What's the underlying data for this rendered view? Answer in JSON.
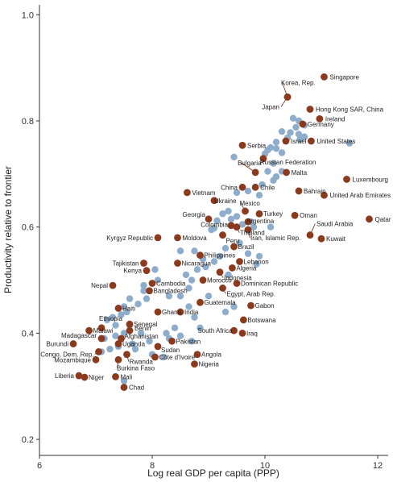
{
  "chart_data": {
    "type": "scatter",
    "title": "",
    "xlabel": "Log real GDP per capita (PPP)",
    "ylabel": "Productivity relative to frontier",
    "xlim": [
      6.0,
      12.2
    ],
    "ylim": [
      0.2,
      1.02
    ],
    "xticks": [
      "6",
      "8",
      "10",
      "12"
    ],
    "yticks": [
      "0.2",
      "0.4",
      "0.6",
      "0.8",
      "1.0"
    ],
    "grid": false,
    "colors": {
      "labeled": "#8b3a1e",
      "unlabeled": "#8eadcc",
      "label_line": "#7a2a12"
    },
    "labeled_points": [
      {
        "name": "Singapore",
        "x": 11.05,
        "y": 0.883
      },
      {
        "name": "Korea, Rep.",
        "x": 10.4,
        "y": 0.845
      },
      {
        "name": "Japan",
        "x": 10.4,
        "y": 0.845
      },
      {
        "name": "Hong Kong SAR, China",
        "x": 10.8,
        "y": 0.822
      },
      {
        "name": "Ireland",
        "x": 10.97,
        "y": 0.804
      },
      {
        "name": "Germany",
        "x": 10.67,
        "y": 0.794
      },
      {
        "name": "Israel",
        "x": 10.37,
        "y": 0.762
      },
      {
        "name": "United States",
        "x": 10.82,
        "y": 0.762
      },
      {
        "name": "Serbia",
        "x": 9.6,
        "y": 0.754
      },
      {
        "name": "Russian Federation",
        "x": 9.97,
        "y": 0.729
      },
      {
        "name": "Bulgaria",
        "x": 9.83,
        "y": 0.703
      },
      {
        "name": "Malta",
        "x": 10.38,
        "y": 0.703
      },
      {
        "name": "Luxembourg",
        "x": 11.45,
        "y": 0.69
      },
      {
        "name": "China",
        "x": 9.6,
        "y": 0.675
      },
      {
        "name": "Chile",
        "x": 9.83,
        "y": 0.675
      },
      {
        "name": "Bahrain",
        "x": 10.6,
        "y": 0.668
      },
      {
        "name": "United Arab Emirates",
        "x": 11.05,
        "y": 0.66
      },
      {
        "name": "Vietnam",
        "x": 8.62,
        "y": 0.665
      },
      {
        "name": "Ukraine",
        "x": 9.1,
        "y": 0.65
      },
      {
        "name": "Mexico",
        "x": 9.65,
        "y": 0.63
      },
      {
        "name": "Turkey",
        "x": 9.9,
        "y": 0.625
      },
      {
        "name": "Oman",
        "x": 10.53,
        "y": 0.622
      },
      {
        "name": "Georgia",
        "x": 9.0,
        "y": 0.615
      },
      {
        "name": "Argentina",
        "x": 9.7,
        "y": 0.61
      },
      {
        "name": "Colombia",
        "x": 9.4,
        "y": 0.603
      },
      {
        "name": "Thailand",
        "x": 9.5,
        "y": 0.6
      },
      {
        "name": "Qatar",
        "x": 11.85,
        "y": 0.615
      },
      {
        "name": "Saudi Arabia",
        "x": 10.8,
        "y": 0.585
      },
      {
        "name": "Iran, Islamic Rep.",
        "x": 9.7,
        "y": 0.595
      },
      {
        "name": "Peru",
        "x": 9.25,
        "y": 0.585
      },
      {
        "name": "Kuwait",
        "x": 11.0,
        "y": 0.578
      },
      {
        "name": "Kyrgyz Republic",
        "x": 8.1,
        "y": 0.58
      },
      {
        "name": "Moldova",
        "x": 8.45,
        "y": 0.58
      },
      {
        "name": "Brazil",
        "x": 9.45,
        "y": 0.563
      },
      {
        "name": "Philippines",
        "x": 8.85,
        "y": 0.547
      },
      {
        "name": "Tajikistan",
        "x": 7.85,
        "y": 0.532
      },
      {
        "name": "Nicaragua",
        "x": 8.45,
        "y": 0.532
      },
      {
        "name": "Lebanon",
        "x": 9.55,
        "y": 0.535
      },
      {
        "name": "Algeria",
        "x": 9.42,
        "y": 0.523
      },
      {
        "name": "Kenya",
        "x": 7.9,
        "y": 0.518
      },
      {
        "name": "Indonesia",
        "x": 9.2,
        "y": 0.515
      },
      {
        "name": "Morocco",
        "x": 8.9,
        "y": 0.5
      },
      {
        "name": "Dominican Republic",
        "x": 9.5,
        "y": 0.494
      },
      {
        "name": "Nepal",
        "x": 7.3,
        "y": 0.49
      },
      {
        "name": "Cambodia",
        "x": 8.0,
        "y": 0.494
      },
      {
        "name": "Bangladesh",
        "x": 7.95,
        "y": 0.48
      },
      {
        "name": "Egypt, Arab Rep.",
        "x": 9.25,
        "y": 0.485
      },
      {
        "name": "Guatemala",
        "x": 8.85,
        "y": 0.458
      },
      {
        "name": "Gabon",
        "x": 9.75,
        "y": 0.452
      },
      {
        "name": "Haiti",
        "x": 7.4,
        "y": 0.447
      },
      {
        "name": "Ghana",
        "x": 8.1,
        "y": 0.44
      },
      {
        "name": "India",
        "x": 8.5,
        "y": 0.44
      },
      {
        "name": "Botswana",
        "x": 9.62,
        "y": 0.425
      },
      {
        "name": "Ethiopia",
        "x": 7.1,
        "y": 0.41
      },
      {
        "name": "Senegal",
        "x": 7.6,
        "y": 0.417
      },
      {
        "name": "Malawi",
        "x": 6.88,
        "y": 0.405
      },
      {
        "name": "Benin",
        "x": 7.6,
        "y": 0.405
      },
      {
        "name": "South Africa",
        "x": 9.45,
        "y": 0.405
      },
      {
        "name": "Iraq",
        "x": 9.6,
        "y": 0.4
      },
      {
        "name": "Madagascar",
        "x": 7.1,
        "y": 0.39
      },
      {
        "name": "Afghanistan",
        "x": 7.45,
        "y": 0.39
      },
      {
        "name": "Pakistan",
        "x": 8.35,
        "y": 0.385
      },
      {
        "name": "Burundi",
        "x": 6.6,
        "y": 0.38
      },
      {
        "name": "Uganda",
        "x": 7.4,
        "y": 0.38
      },
      {
        "name": "Sudan",
        "x": 8.1,
        "y": 0.375
      },
      {
        "name": "Congo, Dem. Rep.",
        "x": 7.05,
        "y": 0.365
      },
      {
        "name": "Angola",
        "x": 8.8,
        "y": 0.36
      },
      {
        "name": "Rwanda",
        "x": 7.55,
        "y": 0.36
      },
      {
        "name": "Côte d'Ivoire",
        "x": 8.05,
        "y": 0.355
      },
      {
        "name": "Mozambique",
        "x": 7.0,
        "y": 0.35
      },
      {
        "name": "Burkina Faso",
        "x": 7.4,
        "y": 0.35
      },
      {
        "name": "Nigeria",
        "x": 8.75,
        "y": 0.342
      },
      {
        "name": "Liberia",
        "x": 6.7,
        "y": 0.32
      },
      {
        "name": "Niger",
        "x": 6.8,
        "y": 0.317
      },
      {
        "name": "Mali",
        "x": 7.35,
        "y": 0.318
      },
      {
        "name": "Chad",
        "x": 7.5,
        "y": 0.298
      }
    ],
    "unlabeled_points": [
      [
        11.5,
        0.758
      ],
      [
        10.3,
        0.74
      ],
      [
        10.2,
        0.748
      ],
      [
        10.3,
        0.78
      ],
      [
        10.45,
        0.778
      ],
      [
        10.55,
        0.788
      ],
      [
        10.6,
        0.775
      ],
      [
        10.5,
        0.805
      ],
      [
        10.6,
        0.8
      ],
      [
        10.7,
        0.792
      ],
      [
        10.62,
        0.765
      ],
      [
        10.7,
        0.77
      ],
      [
        10.4,
        0.768
      ],
      [
        10.2,
        0.76
      ],
      [
        10.1,
        0.75
      ],
      [
        10.05,
        0.745
      ],
      [
        10.0,
        0.738
      ],
      [
        10.15,
        0.72
      ],
      [
        10.05,
        0.705
      ],
      [
        10.2,
        0.695
      ],
      [
        10.3,
        0.705
      ],
      [
        10.15,
        0.688
      ],
      [
        9.95,
        0.68
      ],
      [
        9.9,
        0.66
      ],
      [
        9.7,
        0.668
      ],
      [
        9.45,
        0.732
      ],
      [
        9.5,
        0.665
      ],
      [
        9.35,
        0.63
      ],
      [
        9.25,
        0.625
      ],
      [
        9.4,
        0.615
      ],
      [
        9.5,
        0.62
      ],
      [
        9.6,
        0.605
      ],
      [
        9.75,
        0.61
      ],
      [
        10.1,
        0.6
      ],
      [
        9.8,
        0.6
      ],
      [
        9.15,
        0.612
      ],
      [
        9.1,
        0.598
      ],
      [
        9.05,
        0.595
      ],
      [
        9.55,
        0.57
      ],
      [
        9.7,
        0.55
      ],
      [
        9.9,
        0.545
      ],
      [
        9.3,
        0.56
      ],
      [
        9.2,
        0.545
      ],
      [
        9.1,
        0.535
      ],
      [
        8.9,
        0.54
      ],
      [
        8.75,
        0.555
      ],
      [
        8.5,
        0.555
      ],
      [
        8.6,
        0.51
      ],
      [
        8.8,
        0.52
      ],
      [
        8.95,
        0.525
      ],
      [
        9.35,
        0.51
      ],
      [
        9.85,
        0.53
      ],
      [
        8.7,
        0.5
      ],
      [
        8.65,
        0.485
      ],
      [
        8.5,
        0.47
      ],
      [
        9.0,
        0.47
      ],
      [
        9.45,
        0.45
      ],
      [
        9.3,
        0.44
      ],
      [
        8.65,
        0.45
      ],
      [
        8.3,
        0.47
      ],
      [
        8.1,
        0.5
      ],
      [
        8.05,
        0.52
      ],
      [
        7.85,
        0.48
      ],
      [
        7.9,
        0.465
      ],
      [
        7.6,
        0.465
      ],
      [
        7.5,
        0.45
      ],
      [
        7.55,
        0.44
      ],
      [
        7.45,
        0.435
      ],
      [
        7.3,
        0.43
      ],
      [
        7.2,
        0.425
      ],
      [
        7.35,
        0.415
      ],
      [
        7.6,
        0.415
      ],
      [
        7.5,
        0.4
      ],
      [
        7.35,
        0.395
      ],
      [
        7.4,
        0.375
      ],
      [
        7.25,
        0.37
      ],
      [
        7.1,
        0.365
      ],
      [
        7.7,
        0.37
      ],
      [
        7.95,
        0.385
      ],
      [
        7.8,
        0.4
      ],
      [
        8.0,
        0.36
      ],
      [
        8.2,
        0.355
      ],
      [
        7.5,
        0.31
      ],
      [
        8.25,
        0.4
      ],
      [
        8.4,
        0.41
      ],
      [
        8.3,
        0.39
      ],
      [
        8.5,
        0.395
      ],
      [
        8.7,
        0.385
      ],
      [
        7.85,
        0.49
      ],
      [
        7.75,
        0.455
      ],
      [
        8.85,
        0.41
      ],
      [
        8.75,
        0.43
      ],
      [
        7.65,
        0.38
      ],
      [
        7.15,
        0.39
      ]
    ]
  }
}
